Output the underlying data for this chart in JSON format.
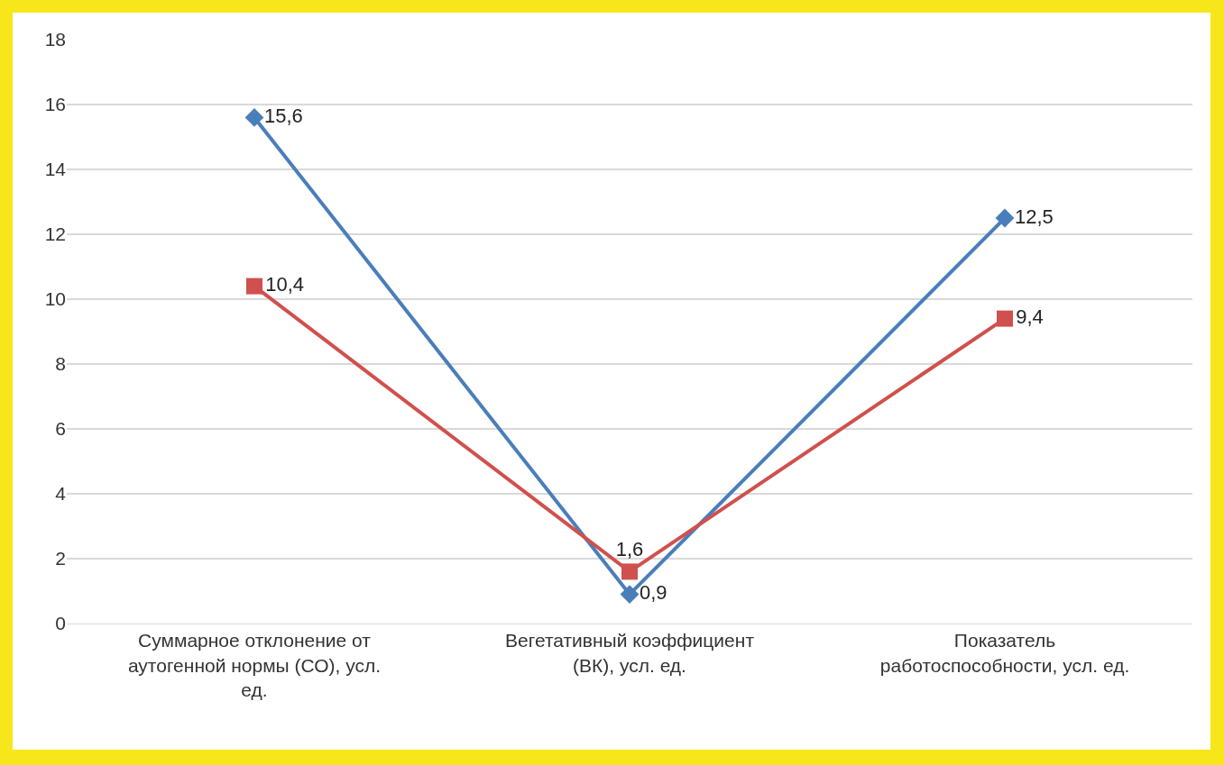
{
  "chart_data": {
    "type": "line",
    "categories": [
      "Суммарное отклонение от аутогенной нормы (СО), усл. ед.",
      "Вегетативный коэффициент (ВК), усл. ед.",
      "Показатель работоспособности, усл. ед."
    ],
    "series": [
      {
        "color": "#4a7ebb",
        "values": [
          15.6,
          0.9,
          12.5
        ],
        "value_labels": [
          "15,6",
          "0,9",
          "12,5"
        ],
        "marker": "diamond"
      },
      {
        "color": "#d0504d",
        "values": [
          10.4,
          1.6,
          9.4
        ],
        "value_labels": [
          "10,4",
          "1,6",
          "9,4"
        ],
        "marker": "square"
      }
    ],
    "ylim": [
      0,
      18
    ],
    "yticks": [
      0,
      2,
      4,
      6,
      8,
      10,
      12,
      14,
      16,
      18
    ],
    "grid": "y"
  }
}
